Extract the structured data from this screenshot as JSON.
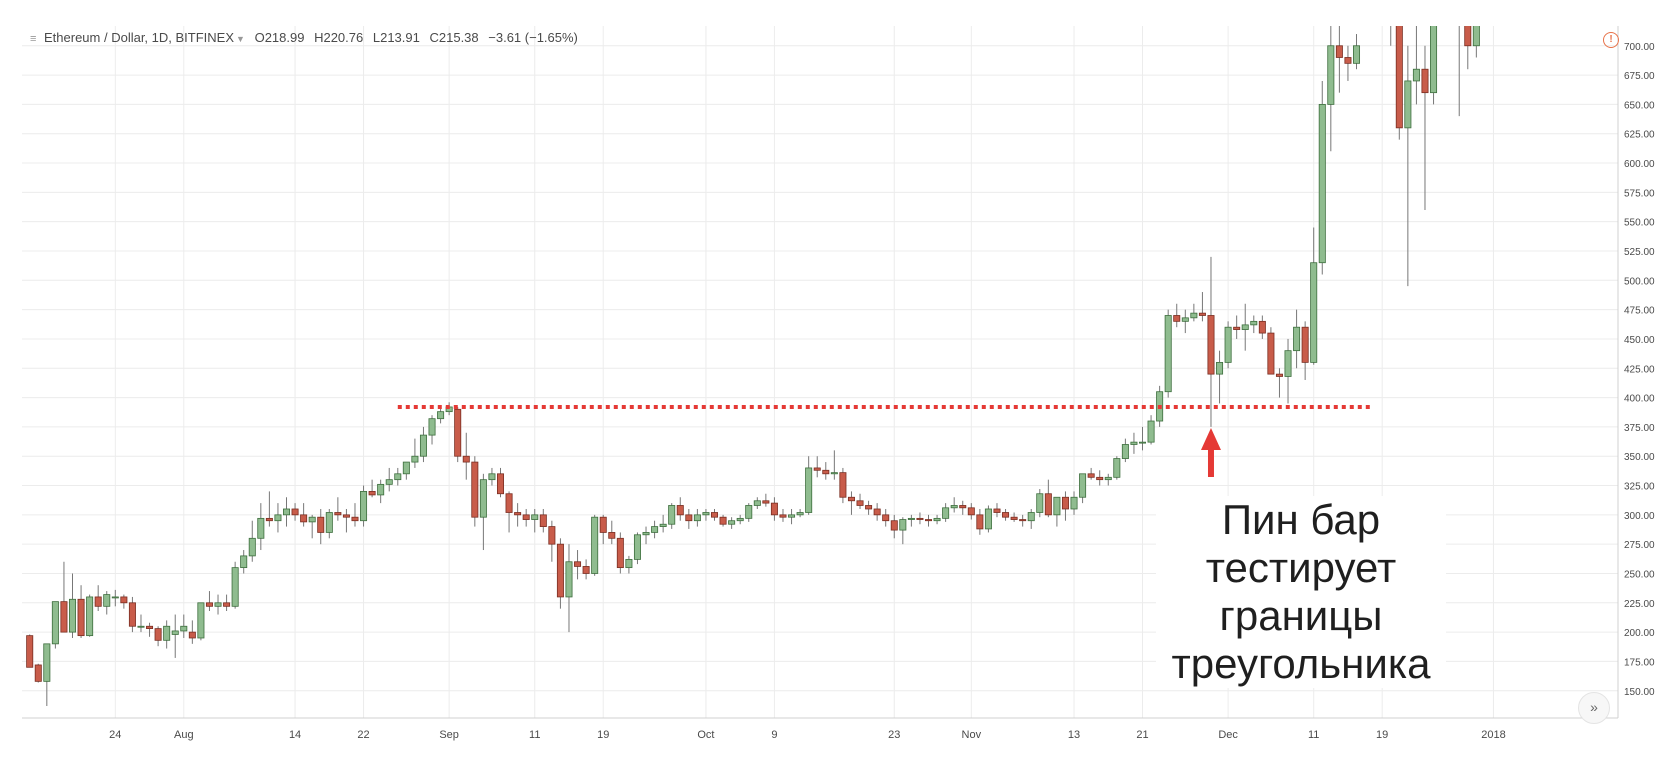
{
  "legend": {
    "symbol": "Ethereum / Dollar, 1D, BITFINEX",
    "open_label": "O",
    "open": "218.99",
    "high_label": "H",
    "high": "220.76",
    "low_label": "L",
    "low": "213.91",
    "close_label": "C",
    "close": "215.38",
    "change": "−3.61 (−1.65%)"
  },
  "annotation": [
    "Пин бар",
    "тестирует",
    "границы",
    "треугольника"
  ],
  "colors": {
    "up_body": "#8fbc8f",
    "up_border": "#3d6e3d",
    "down_body": "#c85c4a",
    "down_border": "#7a2e22",
    "wick": "#777777",
    "grid": "#ececec",
    "resistance": "#e53935",
    "arrow": "#e53935",
    "axis_text": "#4a4a4a"
  },
  "icons": {
    "menu": "bars-icon",
    "alert": "alert-clock-icon",
    "scroll": "double-chevron-right-icon"
  },
  "chart_data": {
    "type": "candlestick",
    "title": "Ethereum / Dollar, 1D, BITFINEX",
    "x_range": [
      "2017-07-14",
      "2018-01-01"
    ],
    "ylim": [
      137,
      710
    ],
    "y_ticks": [
      150,
      175,
      200,
      225,
      250,
      275,
      300,
      325,
      350,
      375,
      400,
      425,
      450,
      475,
      500,
      525,
      550,
      575,
      600,
      625,
      650,
      675,
      700
    ],
    "y_tick_labels": [
      "150.00",
      "175.00",
      "200.00",
      "225.00",
      "250.00",
      "275.00",
      "300.00",
      "325.00",
      "350.00",
      "375.00",
      "400.00",
      "425.00",
      "450.00",
      "475.00",
      "500.00",
      "525.00",
      "550.00",
      "575.00",
      "600.00",
      "625.00",
      "650.00",
      "675.00",
      "700.00"
    ],
    "x_ticks": [
      {
        "date": "2017-07-24",
        "label": "24"
      },
      {
        "date": "2017-08-01",
        "label": "Aug"
      },
      {
        "date": "2017-08-14",
        "label": "14"
      },
      {
        "date": "2017-08-22",
        "label": "22"
      },
      {
        "date": "2017-09-01",
        "label": "Sep"
      },
      {
        "date": "2017-09-11",
        "label": "11"
      },
      {
        "date": "2017-09-19",
        "label": "19"
      },
      {
        "date": "2017-10-01",
        "label": "Oct"
      },
      {
        "date": "2017-10-09",
        "label": "9"
      },
      {
        "date": "2017-10-23",
        "label": "23"
      },
      {
        "date": "2017-11-01",
        "label": "Nov"
      },
      {
        "date": "2017-11-13",
        "label": "13"
      },
      {
        "date": "2017-11-21",
        "label": "21"
      },
      {
        "date": "2017-12-01",
        "label": "Dec"
      },
      {
        "date": "2017-12-11",
        "label": "11"
      },
      {
        "date": "2017-12-19",
        "label": "19"
      },
      {
        "date": "2018-01-01",
        "label": "2018"
      }
    ],
    "resistance_level": 392,
    "resistance_from": "2017-08-26",
    "resistance_to": "2017-12-18",
    "pin_bar_date": "2017-11-29",
    "candles": [
      [
        "2017-07-14",
        197,
        198,
        175,
        170
      ],
      [
        "2017-07-15",
        172,
        173,
        157,
        158
      ],
      [
        "2017-07-16",
        158,
        190,
        137,
        190
      ],
      [
        "2017-07-17",
        190,
        226,
        186,
        226
      ],
      [
        "2017-07-18",
        226,
        260,
        205,
        200
      ],
      [
        "2017-07-19",
        200,
        250,
        195,
        228
      ],
      [
        "2017-07-20",
        228,
        240,
        195,
        197
      ],
      [
        "2017-07-21",
        197,
        232,
        196,
        230
      ],
      [
        "2017-07-22",
        230,
        240,
        218,
        222
      ],
      [
        "2017-07-23",
        222,
        235,
        215,
        232
      ],
      [
        "2017-07-24",
        230,
        236,
        222,
        230
      ],
      [
        "2017-07-25",
        230,
        232,
        220,
        225
      ],
      [
        "2017-07-26",
        225,
        230,
        200,
        205
      ],
      [
        "2017-07-27",
        205,
        215,
        200,
        205
      ],
      [
        "2017-07-28",
        205,
        208,
        196,
        203
      ],
      [
        "2017-07-29",
        203,
        205,
        188,
        193
      ],
      [
        "2017-07-30",
        193,
        210,
        186,
        205
      ],
      [
        "2017-07-31",
        198,
        215,
        178,
        201
      ],
      [
        "2017-08-01",
        201,
        215,
        195,
        205
      ],
      [
        "2017-08-02",
        200,
        210,
        190,
        195
      ],
      [
        "2017-08-03",
        195,
        225,
        193,
        225
      ],
      [
        "2017-08-04",
        225,
        235,
        218,
        222
      ],
      [
        "2017-08-05",
        222,
        232,
        215,
        225
      ],
      [
        "2017-08-06",
        225,
        232,
        218,
        222
      ],
      [
        "2017-08-07",
        222,
        260,
        220,
        255
      ],
      [
        "2017-08-08",
        255,
        270,
        250,
        265
      ],
      [
        "2017-08-09",
        265,
        295,
        260,
        280
      ],
      [
        "2017-08-10",
        280,
        310,
        270,
        297
      ],
      [
        "2017-08-11",
        297,
        320,
        290,
        295
      ],
      [
        "2017-08-12",
        295,
        310,
        285,
        300
      ],
      [
        "2017-08-13",
        300,
        315,
        290,
        305
      ],
      [
        "2017-08-14",
        305,
        310,
        295,
        300
      ],
      [
        "2017-08-15",
        300,
        310,
        290,
        294
      ],
      [
        "2017-08-16",
        294,
        300,
        280,
        298
      ],
      [
        "2017-08-17",
        298,
        305,
        275,
        285
      ],
      [
        "2017-08-18",
        285,
        305,
        280,
        302
      ],
      [
        "2017-08-19",
        302,
        315,
        295,
        300
      ],
      [
        "2017-08-20",
        300,
        305,
        285,
        298
      ],
      [
        "2017-08-21",
        298,
        310,
        290,
        295
      ],
      [
        "2017-08-22",
        295,
        325,
        290,
        320
      ],
      [
        "2017-08-23",
        320,
        330,
        315,
        317
      ],
      [
        "2017-08-24",
        317,
        330,
        310,
        326
      ],
      [
        "2017-08-25",
        326,
        340,
        320,
        330
      ],
      [
        "2017-08-26",
        330,
        340,
        325,
        335
      ],
      [
        "2017-08-27",
        335,
        345,
        330,
        345
      ],
      [
        "2017-08-28",
        345,
        365,
        340,
        350
      ],
      [
        "2017-08-29",
        350,
        375,
        345,
        368
      ],
      [
        "2017-08-30",
        368,
        385,
        360,
        382
      ],
      [
        "2017-08-31",
        382,
        392,
        378,
        388
      ],
      [
        "2017-09-01",
        388,
        396,
        385,
        392
      ],
      [
        "2017-09-02",
        390,
        392,
        345,
        350
      ],
      [
        "2017-09-03",
        350,
        370,
        330,
        345
      ],
      [
        "2017-09-04",
        345,
        350,
        290,
        298
      ],
      [
        "2017-09-05",
        298,
        335,
        270,
        330
      ],
      [
        "2017-09-06",
        330,
        340,
        325,
        335
      ],
      [
        "2017-09-07",
        335,
        340,
        315,
        318
      ],
      [
        "2017-09-08",
        318,
        320,
        285,
        302
      ],
      [
        "2017-09-09",
        302,
        310,
        290,
        300
      ],
      [
        "2017-09-10",
        300,
        305,
        290,
        296
      ],
      [
        "2017-09-11",
        296,
        305,
        285,
        300
      ],
      [
        "2017-09-12",
        300,
        305,
        285,
        290
      ],
      [
        "2017-09-13",
        290,
        295,
        260,
        275
      ],
      [
        "2017-09-14",
        275,
        280,
        220,
        230
      ],
      [
        "2017-09-15",
        230,
        275,
        200,
        260
      ],
      [
        "2017-09-16",
        260,
        270,
        245,
        256
      ],
      [
        "2017-09-17",
        256,
        262,
        245,
        250
      ],
      [
        "2017-09-18",
        250,
        300,
        248,
        298
      ],
      [
        "2017-09-19",
        298,
        300,
        275,
        285
      ],
      [
        "2017-09-20",
        285,
        295,
        275,
        280
      ],
      [
        "2017-09-21",
        280,
        285,
        250,
        255
      ],
      [
        "2017-09-22",
        255,
        265,
        250,
        262
      ],
      [
        "2017-09-23",
        262,
        285,
        258,
        283
      ],
      [
        "2017-09-24",
        283,
        290,
        275,
        285
      ],
      [
        "2017-09-25",
        285,
        295,
        280,
        290
      ],
      [
        "2017-09-26",
        290,
        300,
        285,
        292
      ],
      [
        "2017-09-27",
        292,
        310,
        288,
        308
      ],
      [
        "2017-09-28",
        308,
        315,
        295,
        300
      ],
      [
        "2017-09-29",
        300,
        305,
        288,
        295
      ],
      [
        "2017-09-30",
        295,
        305,
        290,
        300
      ],
      [
        "2017-10-01",
        300,
        305,
        295,
        302
      ],
      [
        "2017-10-02",
        302,
        305,
        295,
        298
      ],
      [
        "2017-10-03",
        298,
        300,
        290,
        292
      ],
      [
        "2017-10-04",
        292,
        298,
        288,
        295
      ],
      [
        "2017-10-05",
        295,
        300,
        292,
        297
      ],
      [
        "2017-10-06",
        297,
        310,
        294,
        308
      ],
      [
        "2017-10-07",
        308,
        315,
        305,
        312
      ],
      [
        "2017-10-08",
        312,
        318,
        307,
        310
      ],
      [
        "2017-10-09",
        310,
        315,
        295,
        300
      ],
      [
        "2017-10-10",
        300,
        305,
        294,
        298
      ],
      [
        "2017-10-11",
        298,
        305,
        292,
        300
      ],
      [
        "2017-10-12",
        300,
        305,
        298,
        302
      ],
      [
        "2017-10-13",
        302,
        350,
        300,
        340
      ],
      [
        "2017-10-14",
        340,
        350,
        332,
        338
      ],
      [
        "2017-10-15",
        338,
        345,
        330,
        335
      ],
      [
        "2017-10-16",
        335,
        355,
        330,
        336
      ],
      [
        "2017-10-17",
        336,
        340,
        310,
        315
      ],
      [
        "2017-10-18",
        315,
        320,
        300,
        312
      ],
      [
        "2017-10-19",
        312,
        318,
        305,
        308
      ],
      [
        "2017-10-20",
        308,
        312,
        300,
        305
      ],
      [
        "2017-10-21",
        305,
        310,
        295,
        300
      ],
      [
        "2017-10-22",
        300,
        305,
        290,
        295
      ],
      [
        "2017-10-23",
        295,
        300,
        280,
        287
      ],
      [
        "2017-10-24",
        287,
        298,
        275,
        296
      ],
      [
        "2017-10-25",
        296,
        300,
        290,
        297
      ],
      [
        "2017-10-26",
        297,
        302,
        292,
        296
      ],
      [
        "2017-10-27",
        296,
        300,
        290,
        295
      ],
      [
        "2017-10-28",
        295,
        300,
        292,
        297
      ],
      [
        "2017-10-29",
        297,
        310,
        294,
        306
      ],
      [
        "2017-10-30",
        306,
        315,
        302,
        308
      ],
      [
        "2017-10-31",
        308,
        312,
        300,
        306
      ],
      [
        "2017-11-01",
        306,
        310,
        296,
        300
      ],
      [
        "2017-11-02",
        300,
        305,
        283,
        288
      ],
      [
        "2017-11-03",
        288,
        308,
        285,
        305
      ],
      [
        "2017-11-04",
        305,
        310,
        298,
        302
      ],
      [
        "2017-11-05",
        302,
        305,
        295,
        298
      ],
      [
        "2017-11-06",
        298,
        302,
        294,
        296
      ],
      [
        "2017-11-07",
        296,
        300,
        290,
        295
      ],
      [
        "2017-11-08",
        295,
        305,
        288,
        302
      ],
      [
        "2017-11-09",
        302,
        322,
        298,
        318
      ],
      [
        "2017-11-10",
        318,
        330,
        298,
        300
      ],
      [
        "2017-11-11",
        300,
        315,
        290,
        315
      ],
      [
        "2017-11-12",
        315,
        320,
        295,
        305
      ],
      [
        "2017-11-13",
        305,
        320,
        300,
        315
      ],
      [
        "2017-11-14",
        315,
        335,
        310,
        335
      ],
      [
        "2017-11-15",
        335,
        340,
        330,
        332
      ],
      [
        "2017-11-16",
        332,
        338,
        325,
        330
      ],
      [
        "2017-11-17",
        330,
        335,
        325,
        332
      ],
      [
        "2017-11-18",
        332,
        350,
        330,
        348
      ],
      [
        "2017-11-19",
        348,
        365,
        345,
        360
      ],
      [
        "2017-11-20",
        360,
        370,
        352,
        362
      ],
      [
        "2017-11-21",
        362,
        375,
        355,
        362
      ],
      [
        "2017-11-22",
        362,
        385,
        360,
        380
      ],
      [
        "2017-11-23",
        380,
        410,
        375,
        405
      ],
      [
        "2017-11-24",
        405,
        475,
        400,
        470
      ],
      [
        "2017-11-25",
        470,
        480,
        460,
        465
      ],
      [
        "2017-11-26",
        465,
        475,
        455,
        468
      ],
      [
        "2017-11-27",
        468,
        480,
        465,
        472
      ],
      [
        "2017-11-28",
        472,
        490,
        465,
        470
      ],
      [
        "2017-11-29",
        470,
        520,
        375,
        420
      ],
      [
        "2017-11-30",
        420,
        440,
        395,
        430
      ],
      [
        "2017-12-01",
        430,
        465,
        425,
        460
      ],
      [
        "2017-12-02",
        460,
        470,
        450,
        458
      ],
      [
        "2017-12-03",
        458,
        480,
        440,
        462
      ],
      [
        "2017-12-04",
        462,
        470,
        455,
        465
      ],
      [
        "2017-12-05",
        465,
        470,
        450,
        455
      ],
      [
        "2017-12-06",
        455,
        460,
        420,
        420
      ],
      [
        "2017-12-07",
        420,
        425,
        400,
        418
      ],
      [
        "2017-12-08",
        418,
        450,
        395,
        440
      ],
      [
        "2017-12-09",
        440,
        475,
        425,
        460
      ],
      [
        "2017-12-10",
        460,
        465,
        415,
        430
      ],
      [
        "2017-12-11",
        430,
        545,
        428,
        515
      ],
      [
        "2017-12-12",
        515,
        670,
        505,
        650
      ],
      [
        "2017-12-13",
        650,
        750,
        610,
        700
      ],
      [
        "2017-12-14",
        700,
        720,
        660,
        690
      ],
      [
        "2017-12-15",
        690,
        700,
        670,
        685
      ],
      [
        "2017-12-16",
        685,
        710,
        680,
        700
      ],
      [
        "2017-12-20",
        720,
        730,
        700,
        730
      ],
      [
        "2017-12-21",
        730,
        740,
        620,
        630
      ],
      [
        "2017-12-22",
        630,
        700,
        495,
        670
      ],
      [
        "2017-12-23",
        670,
        720,
        650,
        680
      ],
      [
        "2017-12-24",
        680,
        700,
        560,
        660
      ],
      [
        "2017-12-25",
        660,
        760,
        650,
        760
      ],
      [
        "2017-12-28",
        720,
        740,
        640,
        730
      ],
      [
        "2017-12-29",
        730,
        740,
        680,
        700
      ],
      [
        "2017-12-30",
        700,
        760,
        690,
        760
      ]
    ]
  }
}
